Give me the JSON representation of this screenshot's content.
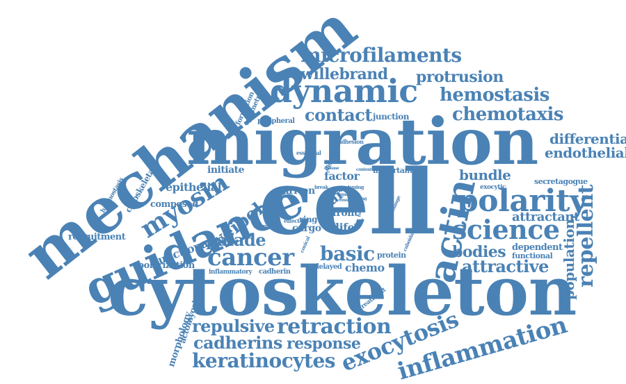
{
  "word_color": "#4a82b5",
  "words": [
    "mechanism",
    "migration",
    "cytoskeleton",
    "cell",
    "guidance",
    "actin",
    "dynamic",
    "polarity",
    "science",
    "microfilaments",
    "willebrand",
    "protrusion",
    "hemostasis",
    "chemotaxis",
    "contact",
    "junction",
    "differential",
    "endothelial",
    "myosin",
    "cancer",
    "weibel",
    "palade",
    "repellent",
    "bundle",
    "attractant",
    "bodies",
    "attractive",
    "population",
    "inflammation",
    "exocytosis",
    "retraction",
    "response",
    "repulsive",
    "cadherins",
    "keratinocytes",
    "basic",
    "epithelial",
    "composed",
    "initiate",
    "cytoskeletal",
    "haemostasis",
    "recruitment",
    "junctional",
    "polarization",
    "inflammatory",
    "cadherin",
    "morphology",
    "actomyosin",
    "formation",
    "symmetry",
    "peripheral",
    "essential",
    "adhesion",
    "distinct",
    "important",
    "factor",
    "rear",
    "front",
    "driven",
    "break",
    "tuning",
    "rolling",
    "fusion",
    "change",
    "effect",
    "receptor",
    "ring",
    "cargo",
    "life",
    "whereas",
    "conical",
    "protein",
    "cuboidal",
    "delayed",
    "chemo",
    "treatment",
    "dependent",
    "functional",
    "secretagogue",
    "exocytic",
    "disease",
    "content",
    "small",
    "result",
    "event"
  ]
}
